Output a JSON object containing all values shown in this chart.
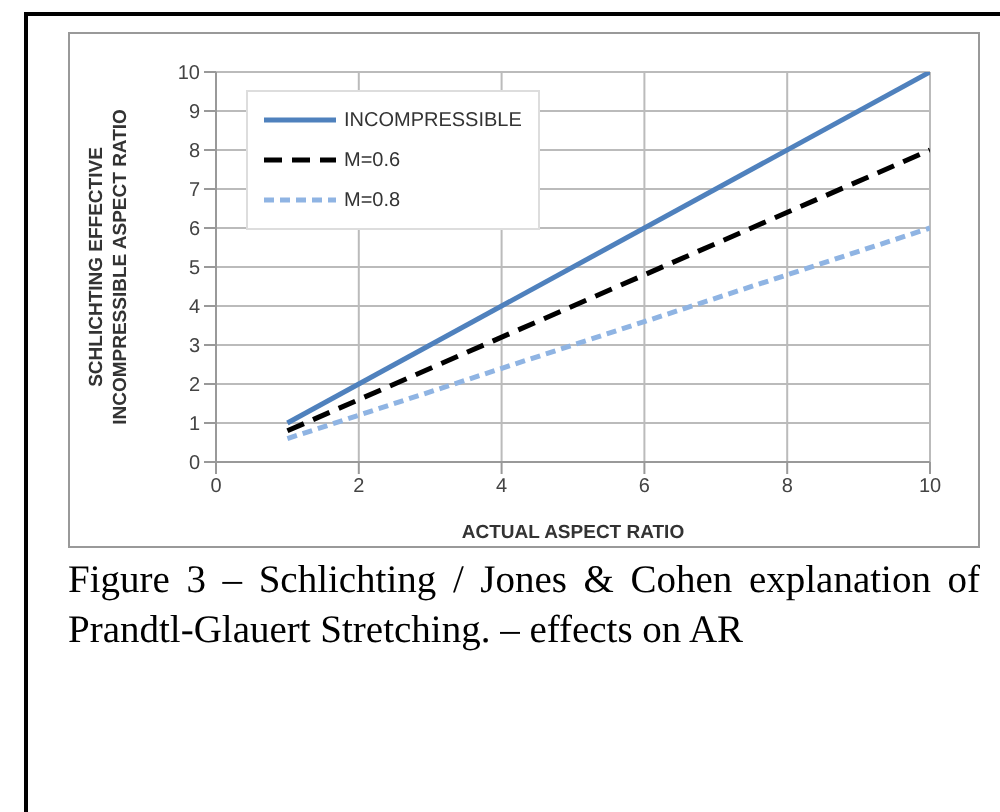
{
  "chart_data": {
    "type": "line",
    "xlabel": "ACTUAL ASPECT RATIO",
    "ylabel": "SCHLICHTING  EFFECTIVE\nINCOMPRESSIBLE ASPECT RATIO",
    "annotations": [
      "Figure 3 – Schlichting / Jones & Cohen explanation of Prandtl-Glauert Stretching. – effects on AR"
    ],
    "x": [
      1,
      10
    ],
    "series": [
      {
        "name": "INCOMPRESSIBLE",
        "color": "#4f81bd",
        "values": [
          1,
          10
        ],
        "line_style": "solid"
      },
      {
        "name": "M=0.6",
        "color": "#000000",
        "values": [
          0.8,
          8
        ],
        "line_style": "dashed"
      },
      {
        "name": "M=0.8",
        "color": "#8fb4e3",
        "values": [
          0.6,
          6
        ],
        "line_style": "dashed"
      }
    ],
    "xlim": [
      0,
      10
    ],
    "xticks": [
      0,
      2,
      4,
      6,
      8,
      10
    ],
    "ylim": [
      0,
      10
    ],
    "yticks": [
      0,
      1,
      2,
      3,
      4,
      5,
      6,
      7,
      8,
      9,
      10
    ],
    "grid": true,
    "legend": "top left",
    "marker": "none"
  }
}
